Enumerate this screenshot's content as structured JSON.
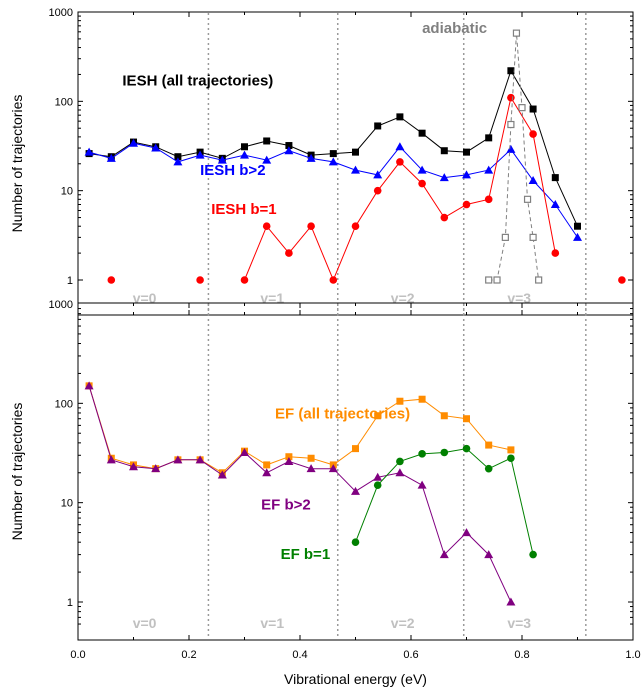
{
  "chart_data": [
    {
      "type": "line",
      "panel": "top",
      "xlabel": "",
      "ylabel": "Number of trajectories",
      "xlim": [
        0.0,
        1.0
      ],
      "ylim": [
        1,
        1000
      ],
      "yscale": "log",
      "yticks": [
        "1",
        "10",
        "100",
        "1000"
      ],
      "vlines": [
        0.235,
        0.468,
        0.695,
        0.915
      ],
      "vlabels": [
        {
          "text": "v=0",
          "x": 0.12
        },
        {
          "text": "v=1",
          "x": 0.35
        },
        {
          "text": "v=2",
          "x": 0.585
        },
        {
          "text": "v=3",
          "x": 0.795
        }
      ],
      "series": [
        {
          "name": "IESH (all trajectories)",
          "color": "#000000",
          "marker": "square",
          "label_pos": [
            0.08,
            150
          ],
          "x": [
            0.02,
            0.06,
            0.1,
            0.14,
            0.18,
            0.22,
            0.26,
            0.3,
            0.34,
            0.38,
            0.42,
            0.46,
            0.5,
            0.54,
            0.58,
            0.62,
            0.66,
            0.7,
            0.74,
            0.78,
            0.82,
            0.86,
            0.9
          ],
          "values": [
            26,
            24,
            35,
            31,
            24,
            27,
            23,
            31,
            36,
            32,
            25,
            26,
            27,
            53,
            67,
            44,
            28,
            27,
            39,
            220,
            82,
            14,
            4
          ]
        },
        {
          "name": "IESH b>2",
          "color": "#0000ff",
          "marker": "triangle",
          "label_pos": [
            0.22,
            15
          ],
          "x": [
            0.02,
            0.06,
            0.1,
            0.14,
            0.18,
            0.22,
            0.26,
            0.3,
            0.34,
            0.38,
            0.42,
            0.46,
            0.5,
            0.54,
            0.58,
            0.62,
            0.66,
            0.7,
            0.74,
            0.78,
            0.82,
            0.86,
            0.9
          ],
          "values": [
            27,
            23,
            34,
            30,
            21,
            25,
            22,
            25,
            22,
            28,
            23,
            21,
            17,
            15,
            31,
            17,
            14,
            15,
            17,
            29,
            13,
            7,
            3
          ]
        },
        {
          "name": "IESH b=1",
          "color": "#ff0000",
          "marker": "circle",
          "label_pos": [
            0.24,
            5.5
          ],
          "x": [
            0.06,
            0.22,
            0.3,
            0.34,
            0.38,
            0.42,
            0.46,
            0.5,
            0.54,
            0.58,
            0.62,
            0.66,
            0.7,
            0.74,
            0.78,
            0.82,
            0.86,
            0.98
          ],
          "values": [
            1,
            1,
            1,
            4,
            2,
            4,
            1,
            4,
            10,
            21,
            12,
            5,
            7,
            8,
            110,
            43,
            2,
            1
          ],
          "segments": [
            [
              2,
              16
            ]
          ]
        },
        {
          "name": "adiabatic",
          "color": "#808080",
          "marker": "open-square",
          "dashed": true,
          "label_pos": [
            0.62,
            580
          ],
          "x": [
            0.74,
            0.755,
            0.77,
            0.78,
            0.79,
            0.8,
            0.81,
            0.82,
            0.83
          ],
          "values": [
            1,
            1,
            3,
            55,
            580,
            85,
            8,
            3,
            1
          ]
        }
      ]
    },
    {
      "type": "line",
      "panel": "bottom",
      "xlabel": "Vibrational energy (eV)",
      "ylabel": "Number of trajectories",
      "xlim": [
        0.0,
        1.0
      ],
      "ylim": [
        0.5,
        1000
      ],
      "yscale": "log",
      "xticks": [
        "0.0",
        "0.2",
        "0.4",
        "0.6",
        "0.8",
        "1.0"
      ],
      "yticks": [
        "1",
        "10",
        "100",
        "1000"
      ],
      "vlines": [
        0.235,
        0.468,
        0.695,
        0.915
      ],
      "vlabels": [
        {
          "text": "v=0",
          "x": 0.12
        },
        {
          "text": "v=1",
          "x": 0.35
        },
        {
          "text": "v=2",
          "x": 0.585
        },
        {
          "text": "v=3",
          "x": 0.795
        }
      ],
      "series": [
        {
          "name": "EF (all trajectories)",
          "color": "#ff8c00",
          "marker": "square",
          "label_pos": [
            0.355,
            70
          ],
          "x": [
            0.02,
            0.06,
            0.1,
            0.14,
            0.18,
            0.22,
            0.26,
            0.3,
            0.34,
            0.38,
            0.42,
            0.46,
            0.5,
            0.54,
            0.58,
            0.62,
            0.66,
            0.7,
            0.74,
            0.78
          ],
          "values": [
            150,
            28,
            24,
            22,
            27,
            27,
            20,
            33,
            24,
            29,
            28,
            24,
            35,
            75,
            105,
            110,
            75,
            70,
            38,
            34
          ]
        },
        {
          "name": "EF b>2",
          "color": "#800080",
          "marker": "triangle",
          "label_pos": [
            0.33,
            8.5
          ],
          "x": [
            0.02,
            0.06,
            0.1,
            0.14,
            0.18,
            0.22,
            0.26,
            0.3,
            0.34,
            0.38,
            0.42,
            0.46,
            0.5,
            0.54,
            0.58,
            0.62,
            0.66,
            0.7,
            0.74,
            0.78
          ],
          "values": [
            150,
            27,
            23,
            22,
            27,
            27,
            19,
            32,
            20,
            26,
            22,
            22,
            13,
            18,
            20,
            15,
            3,
            5,
            3,
            1
          ]
        },
        {
          "name": "EF b=1",
          "color": "#008000",
          "marker": "circle",
          "label_pos": [
            0.365,
            2.7
          ],
          "x": [
            0.5,
            0.54,
            0.58,
            0.62,
            0.66,
            0.7,
            0.74,
            0.78,
            0.82
          ],
          "values": [
            4,
            15,
            26,
            31,
            32,
            35,
            22,
            28,
            3
          ]
        }
      ]
    }
  ]
}
